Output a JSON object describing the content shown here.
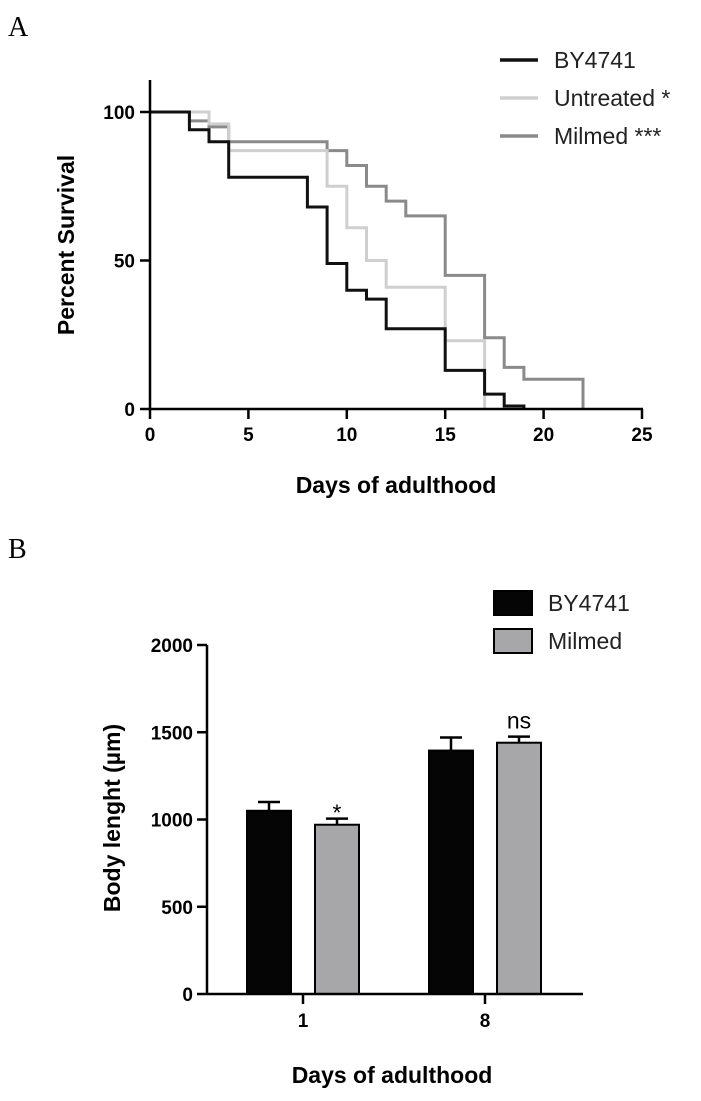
{
  "figure": {
    "panel_a_label": "A",
    "panel_b_label": "B"
  },
  "chart_data": [
    {
      "type": "line",
      "step": true,
      "xlabel": "Days of adulthood",
      "ylabel": "Percent Survival",
      "xlim": [
        0,
        25
      ],
      "ylim": [
        0,
        100
      ],
      "xticks": [
        0,
        5,
        10,
        15,
        20,
        25
      ],
      "yticks": [
        0,
        50,
        100
      ],
      "grid": false,
      "legend": "top-right",
      "series": [
        {
          "name": "BY4741",
          "color": "#111111",
          "points": [
            [
              0,
              100
            ],
            [
              2,
              100
            ],
            [
              2,
              94
            ],
            [
              3,
              94
            ],
            [
              3,
              90
            ],
            [
              4,
              90
            ],
            [
              4,
              78
            ],
            [
              8,
              78
            ],
            [
              8,
              68
            ],
            [
              9,
              68
            ],
            [
              9,
              49
            ],
            [
              10,
              49
            ],
            [
              10,
              40
            ],
            [
              11,
              40
            ],
            [
              11,
              37
            ],
            [
              12,
              37
            ],
            [
              12,
              27
            ],
            [
              15,
              27
            ],
            [
              15,
              13
            ],
            [
              17,
              13
            ],
            [
              17,
              5
            ],
            [
              18,
              5
            ],
            [
              18,
              1
            ],
            [
              19,
              1
            ],
            [
              19,
              0
            ]
          ]
        },
        {
          "name": "Untreated *",
          "color": "#cfcfcf",
          "points": [
            [
              0,
              100
            ],
            [
              3,
              100
            ],
            [
              3,
              96
            ],
            [
              4,
              96
            ],
            [
              4,
              87
            ],
            [
              9,
              87
            ],
            [
              9,
              75
            ],
            [
              10,
              75
            ],
            [
              10,
              61
            ],
            [
              11,
              61
            ],
            [
              11,
              50
            ],
            [
              12,
              50
            ],
            [
              12,
              41
            ],
            [
              15,
              41
            ],
            [
              15,
              23
            ],
            [
              17,
              23
            ],
            [
              17,
              0
            ]
          ]
        },
        {
          "name": "Milmed ***",
          "color": "#8a8a8a",
          "points": [
            [
              0,
              100
            ],
            [
              2,
              100
            ],
            [
              2,
              97
            ],
            [
              3,
              97
            ],
            [
              3,
              95
            ],
            [
              4,
              95
            ],
            [
              4,
              90
            ],
            [
              9,
              90
            ],
            [
              9,
              87
            ],
            [
              10,
              87
            ],
            [
              10,
              82
            ],
            [
              11,
              82
            ],
            [
              11,
              75
            ],
            [
              12,
              75
            ],
            [
              12,
              70
            ],
            [
              13,
              70
            ],
            [
              13,
              65
            ],
            [
              15,
              65
            ],
            [
              15,
              45
            ],
            [
              17,
              45
            ],
            [
              17,
              24
            ],
            [
              18,
              24
            ],
            [
              18,
              14
            ],
            [
              19,
              14
            ],
            [
              19,
              10
            ],
            [
              22,
              10
            ],
            [
              22,
              0
            ]
          ]
        }
      ]
    },
    {
      "type": "bar",
      "xlabel": "Days of adulthood",
      "ylabel": "Body lenght (µm)",
      "categories": [
        "1",
        "8"
      ],
      "ylim": [
        0,
        2000
      ],
      "yticks": [
        0,
        500,
        1000,
        1500,
        2000
      ],
      "grid": false,
      "legend": "top-right",
      "series": [
        {
          "name": "BY4741",
          "color": "#050505",
          "values": [
            1050,
            1395
          ],
          "errors": [
            50,
            75
          ],
          "annotations": [
            "",
            ""
          ]
        },
        {
          "name": "Milmed",
          "color": "#a7a7aa",
          "values": [
            970,
            1440
          ],
          "errors": [
            35,
            35
          ],
          "annotations": [
            "*",
            "ns"
          ]
        }
      ]
    }
  ]
}
